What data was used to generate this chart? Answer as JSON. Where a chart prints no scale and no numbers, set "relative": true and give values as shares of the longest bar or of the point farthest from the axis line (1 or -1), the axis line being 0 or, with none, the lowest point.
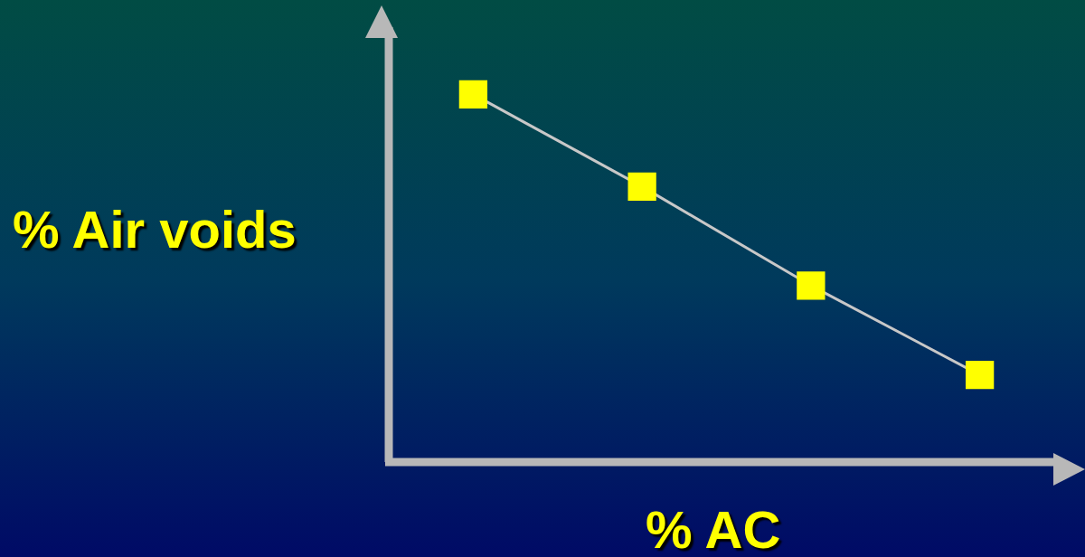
{
  "chart_data": {
    "type": "line",
    "xlabel": "% AC",
    "ylabel": "% Air voids",
    "relative": true,
    "categories": [
      null,
      null,
      null,
      null
    ],
    "series": [
      {
        "color": "#c8c8c8",
        "colors": [
          "#ffff00",
          "#ffff00",
          "#ffff00",
          "#ffff00"
        ],
        "values": [
          1,
          0.749,
          0.48,
          0.237
        ]
      }
    ],
    "marker": "square",
    "line_style": "solid",
    "grid": false,
    "legend": false
  }
}
